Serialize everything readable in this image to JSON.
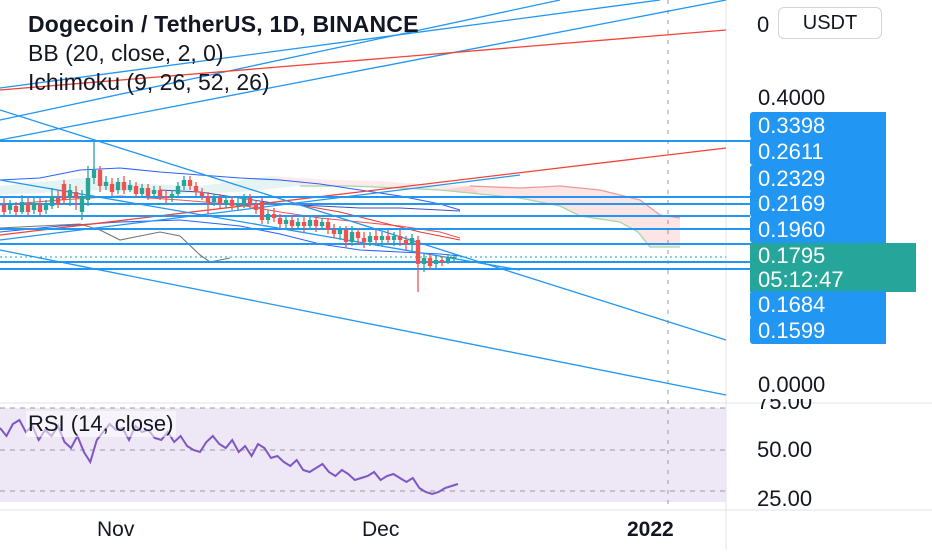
{
  "legend": {
    "title": "Dogecoin / TetherUS, 1D, BINANCE",
    "bb": "BB (20, close, 2, 0)",
    "ichimoku": "Ichimoku (9, 26, 52, 26)"
  },
  "unit_label": "USDT",
  "price_axis": {
    "top_label": "0",
    "labels": [
      "0.4000",
      "0.0000"
    ]
  },
  "price_tags": [
    "0.3398",
    "0.2611",
    "0.2329",
    "0.2169",
    "0.1960",
    "0.1684",
    "0.1599"
  ],
  "current_price": {
    "price": "0.1795",
    "countdown": "05:12:47"
  },
  "rsi": {
    "label": "RSI (14, close)",
    "axis_labels": [
      "75.00",
      "50.00",
      "25.00"
    ]
  },
  "time_axis": {
    "labels": [
      "Nov",
      "Dec",
      "2022"
    ]
  },
  "colors": {
    "up": "#26a69a",
    "down": "#ef5350",
    "trendline_blue": "#2196f3",
    "trendline_red": "#f44336",
    "rsi_line": "#7e57c2",
    "rsi_band": "#ede7f6"
  },
  "chart_data": {
    "type": "candlestick",
    "title": "Dogecoin / TetherUS, 1D, BINANCE",
    "indicators": [
      "BB (20, close, 2, 0)",
      "Ichimoku (9, 26, 52, 26)",
      "RSI (14, close)"
    ],
    "price_axis_labels": [
      "0.4000",
      "0.0000"
    ],
    "horizontal_levels": [
      0.3398,
      0.2611,
      0.2329,
      0.2169,
      0.196,
      0.1684,
      0.1599
    ],
    "last_price": 0.1795,
    "rsi_levels": [
      75,
      50,
      25
    ],
    "time_labels": [
      "Nov",
      "Dec",
      "2022"
    ]
  }
}
